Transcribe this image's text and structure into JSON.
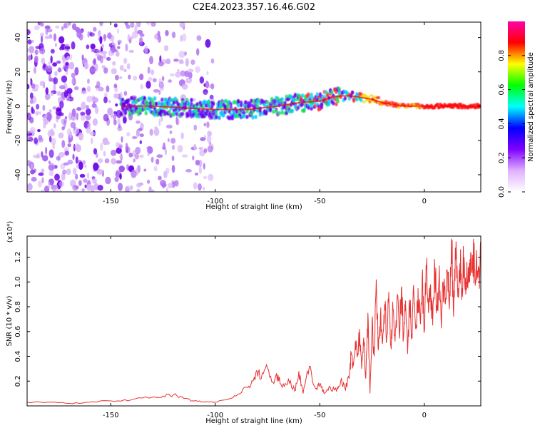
{
  "figure": {
    "title": "C2E4.2023.357.16.46.G02"
  },
  "chart_data": [
    {
      "type": "heatmap",
      "title": "C2E4.2023.357.16.46.G02",
      "xlabel": "Height of straight line (km)",
      "ylabel": "Frequency (Hz)",
      "xlim": [
        -190,
        27
      ],
      "ylim": [
        -50,
        49
      ],
      "x_ticks": [
        -150,
        -100,
        -50,
        0
      ],
      "x_tick_labels": [
        "-150",
        "-100",
        "-50",
        "0"
      ],
      "y_ticks": [
        -40,
        -20,
        0,
        20,
        40
      ],
      "y_tick_labels": [
        "-40",
        "-20",
        "0",
        "20",
        "40"
      ],
      "colorbar": {
        "label": "Normalized spectral amplitude",
        "range": [
          0,
          1
        ],
        "ticks": [
          0.0,
          0.2,
          0.4,
          0.6,
          0.8
        ],
        "tick_labels": [
          "0.0",
          "0.2",
          "0.4",
          "0.6",
          "0.8"
        ],
        "colors": [
          "#ffffff",
          "#e0b0ff",
          "#7f00ff",
          "#0000ff",
          "#00ffff",
          "#00ff00",
          "#ffff00",
          "#ff0000",
          "#ff00aa"
        ]
      },
      "ridge_line": {
        "x": [
          -145,
          -130,
          -115,
          -100,
          -85,
          -70,
          -60,
          -50,
          -45,
          -40,
          -35,
          -30,
          -25,
          -20,
          -15,
          -10,
          -5,
          0,
          10,
          27
        ],
        "y": [
          0,
          0,
          -1,
          -2,
          -2,
          0,
          2,
          3,
          5,
          6,
          6,
          5,
          4,
          2,
          1,
          0,
          0,
          0,
          0,
          0
        ]
      },
      "noise_region_x": [
        -190,
        -100
      ],
      "grid": false
    },
    {
      "type": "line",
      "xlabel": "Height of straight line (km)",
      "ylabel": "SNR (10 * v/v)",
      "y_multiplier": "(x10⁴)",
      "xlim": [
        -190,
        27
      ],
      "ylim": [
        0,
        1.37
      ],
      "x_ticks": [
        -150,
        -100,
        -50,
        0
      ],
      "x_tick_labels": [
        "-150",
        "-100",
        "-50",
        "0"
      ],
      "y_ticks": [
        0.2,
        0.4,
        0.6,
        0.8,
        1.0,
        1.2
      ],
      "y_tick_labels": [
        "0.2",
        "0.4",
        "0.6",
        "0.8",
        "1.0",
        "1.2"
      ],
      "series": [
        {
          "color": "#e83030",
          "x": [
            -190,
            -180,
            -170,
            -160,
            -150,
            -140,
            -130,
            -125,
            -120,
            -115,
            -110,
            -105,
            -100,
            -95,
            -90,
            -85,
            -82,
            -80,
            -78,
            -75,
            -72,
            -70,
            -68,
            -65,
            -62,
            -60,
            -58,
            -55,
            -52,
            -50,
            -48,
            -45,
            -42,
            -40,
            -38,
            -36,
            -35,
            -34,
            -33,
            -32,
            -31,
            -30,
            -29,
            -28,
            -27,
            -26,
            -25,
            -24,
            -23,
            -22,
            -21,
            -20,
            -19,
            -18,
            -17,
            -16,
            -15,
            -14,
            -13,
            -12,
            -11,
            -10,
            -9,
            -8,
            -7,
            -6,
            -5,
            -4,
            -3,
            -2,
            -1,
            0,
            1,
            2,
            3,
            4,
            5,
            6,
            7,
            8,
            9,
            10,
            11,
            12,
            13,
            14,
            15,
            16,
            17,
            18,
            19,
            20,
            21,
            22,
            23,
            24,
            25,
            26,
            27
          ],
          "y": [
            0.03,
            0.03,
            0.02,
            0.03,
            0.04,
            0.05,
            0.07,
            0.08,
            0.09,
            0.06,
            0.04,
            0.03,
            0.03,
            0.05,
            0.08,
            0.15,
            0.2,
            0.28,
            0.22,
            0.3,
            0.18,
            0.25,
            0.15,
            0.22,
            0.12,
            0.28,
            0.1,
            0.32,
            0.14,
            0.18,
            0.1,
            0.15,
            0.12,
            0.2,
            0.14,
            0.22,
            0.42,
            0.32,
            0.52,
            0.4,
            0.62,
            0.3,
            0.55,
            0.22,
            0.75,
            0.1,
            0.68,
            0.4,
            1.02,
            0.45,
            0.72,
            0.5,
            0.82,
            0.55,
            0.92,
            0.48,
            0.78,
            0.52,
            0.88,
            0.6,
            0.95,
            0.55,
            0.85,
            0.42,
            0.8,
            0.58,
            0.9,
            0.62,
            0.95,
            0.7,
            1.05,
            0.6,
            1.1,
            0.75,
            0.98,
            0.65,
            1.12,
            0.8,
            1.02,
            0.7,
            1.0,
            0.82,
            1.08,
            0.78,
            1.35,
            0.72,
            1.18,
            0.88,
            1.15,
            0.95,
            1.2,
            1.0,
            1.12,
            1.05,
            1.22,
            1.1,
            1.18,
            1.08,
            1.2
          ]
        }
      ],
      "grid": false
    }
  ]
}
